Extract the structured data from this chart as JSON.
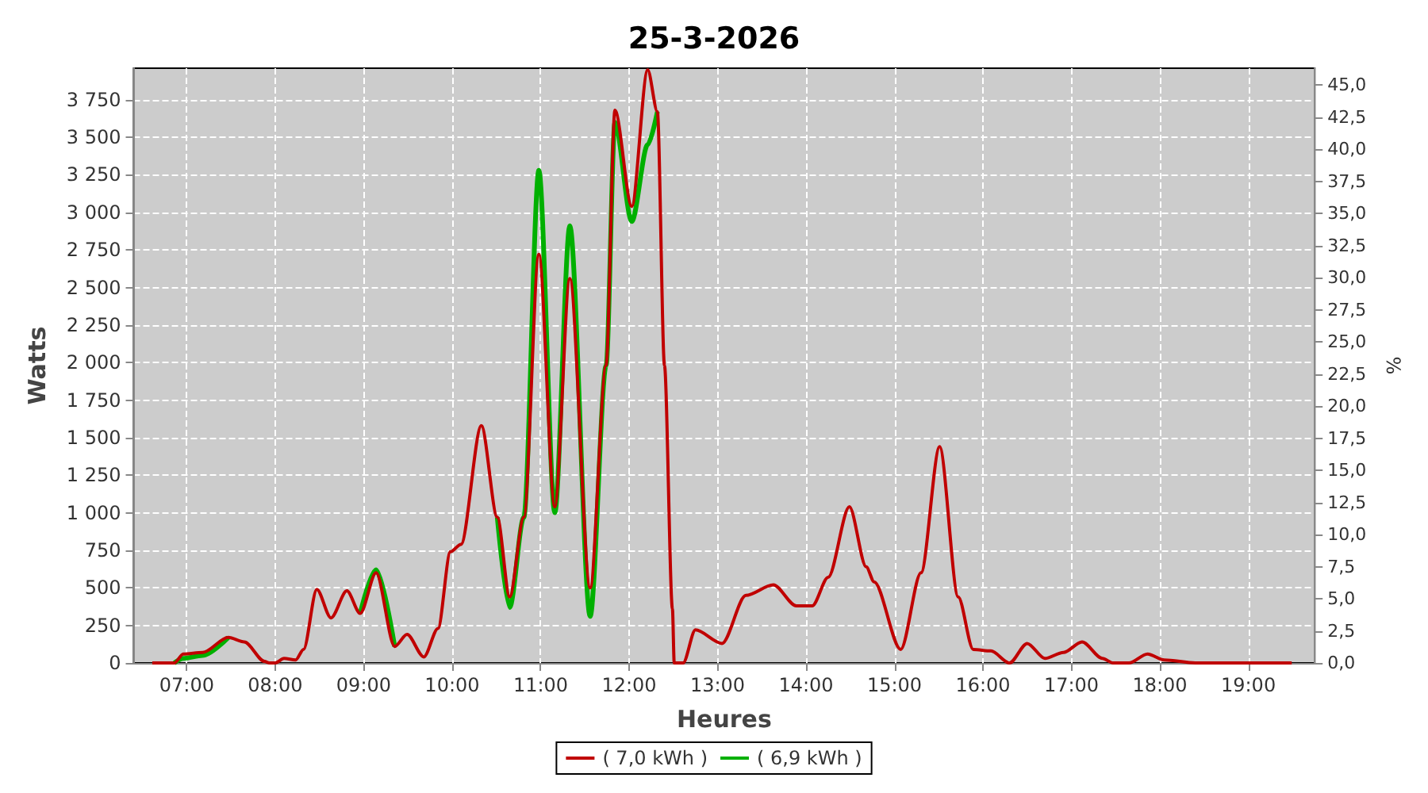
{
  "chart_data": {
    "type": "line",
    "title": "25-3-2026",
    "xlabel": "Heures",
    "ylabel": "Watts",
    "y2label": "%",
    "xlim": [
      6.4,
      19.75
    ],
    "xticks": [
      {
        "value": 7,
        "label": "07:00"
      },
      {
        "value": 8,
        "label": "08:00"
      },
      {
        "value": 9,
        "label": "09:00"
      },
      {
        "value": 10,
        "label": "10:00"
      },
      {
        "value": 11,
        "label": "11:00"
      },
      {
        "value": 12,
        "label": "12:00"
      },
      {
        "value": 13,
        "label": "13:00"
      },
      {
        "value": 14,
        "label": "14:00"
      },
      {
        "value": 15,
        "label": "15:00"
      },
      {
        "value": 16,
        "label": "16:00"
      },
      {
        "value": 17,
        "label": "17:00"
      },
      {
        "value": 18,
        "label": "18:00"
      },
      {
        "value": 19,
        "label": "19:00"
      }
    ],
    "ylim": [
      0,
      3960
    ],
    "yticks": [
      0,
      250,
      500,
      750,
      {
        "value": 1000,
        "label": "1 000"
      },
      {
        "value": 1250,
        "label": "1 250"
      },
      {
        "value": 1500,
        "label": "1 500"
      },
      {
        "value": 1750,
        "label": "1 750"
      },
      {
        "value": 2000,
        "label": "2 000"
      },
      {
        "value": 2250,
        "label": "2 250"
      },
      {
        "value": 2500,
        "label": "2 500"
      },
      {
        "value": 2750,
        "label": "2 750"
      },
      {
        "value": 3000,
        "label": "3 000"
      },
      {
        "value": 3250,
        "label": "3 250"
      },
      {
        "value": 3500,
        "label": "3 500"
      },
      {
        "value": 3750,
        "label": "3 750"
      }
    ],
    "y2lim": [
      0,
      46.3
    ],
    "y2ticks": [
      {
        "value": 0,
        "label": "0,0"
      },
      {
        "value": 2.5,
        "label": "2,5"
      },
      {
        "value": 5,
        "label": "5,0"
      },
      {
        "value": 7.5,
        "label": "7,5"
      },
      {
        "value": 10,
        "label": "10,0"
      },
      {
        "value": 12.5,
        "label": "12,5"
      },
      {
        "value": 15,
        "label": "15,0"
      },
      {
        "value": 17.5,
        "label": "17,5"
      },
      {
        "value": 20,
        "label": "20,0"
      },
      {
        "value": 22.5,
        "label": "22,5"
      },
      {
        "value": 25,
        "label": "25,0"
      },
      {
        "value": 27.5,
        "label": "27,5"
      },
      {
        "value": 30,
        "label": "30,0"
      },
      {
        "value": 32.5,
        "label": "32,5"
      },
      {
        "value": 35,
        "label": "35,0"
      },
      {
        "value": 37.5,
        "label": "37,5"
      },
      {
        "value": 40,
        "label": "40,0"
      },
      {
        "value": 42.5,
        "label": "42,5"
      },
      {
        "value": 45,
        "label": "45,0"
      }
    ],
    "grid": true,
    "legend": "bottom",
    "marker": "none",
    "line_style": "solid",
    "x": [
      6.61,
      6.86,
      6.96,
      7.18,
      7.47,
      7.65,
      7.88,
      7.93,
      8.0,
      8.1,
      8.23,
      8.32,
      8.47,
      8.63,
      8.81,
      8.96,
      9.14,
      9.35,
      9.49,
      9.68,
      9.84,
      9.98,
      10.1,
      10.33,
      10.51,
      10.65,
      10.81,
      10.98,
      11.16,
      11.33,
      11.56,
      11.74,
      11.84,
      12.03,
      12.21,
      12.32,
      12.4,
      12.49,
      12.51,
      12.61,
      12.75,
      13.05,
      13.32,
      13.63,
      13.89,
      14.07,
      14.25,
      14.49,
      14.68,
      14.77,
      15.07,
      15.3,
      15.51,
      15.72,
      15.89,
      16.09,
      16.3,
      16.5,
      16.7,
      16.91,
      17.12,
      17.35,
      17.47,
      17.65,
      17.86,
      18.05,
      18.4,
      19.49
    ],
    "series": [
      {
        "name": "( 7,0 kWh )",
        "color": "#c00000",
        "values": [
          0,
          0,
          60,
          70,
          170,
          140,
          10,
          0,
          0,
          30,
          20,
          90,
          490,
          300,
          480,
          330,
          600,
          110,
          190,
          40,
          230,
          740,
          790,
          1580,
          970,
          440,
          970,
          2720,
          1040,
          2560,
          500,
          1980,
          3680,
          3040,
          3950,
          3670,
          1980,
          360,
          0,
          0,
          220,
          130,
          450,
          520,
          380,
          380,
          570,
          1040,
          640,
          540,
          90,
          600,
          1440,
          440,
          90,
          80,
          0,
          130,
          30,
          70,
          140,
          30,
          0,
          0,
          60,
          20,
          0,
          0
        ]
      },
      {
        "name": "( 6,9 kWh )",
        "color": "#00b000",
        "values": [
          null,
          0,
          30,
          50,
          170,
          null,
          null,
          null,
          null,
          null,
          null,
          null,
          null,
          null,
          null,
          330,
          620,
          110,
          null,
          null,
          null,
          null,
          null,
          null,
          970,
          370,
          970,
          3280,
          1000,
          2910,
          310,
          1980,
          3600,
          2940,
          3450,
          3670,
          null,
          null,
          null,
          null,
          null,
          null,
          null,
          null,
          null,
          null,
          null,
          null,
          null,
          null,
          null,
          null,
          null,
          null,
          null,
          null,
          null,
          null,
          null,
          null,
          null,
          null,
          null,
          null,
          null,
          null,
          null,
          null
        ]
      }
    ]
  }
}
